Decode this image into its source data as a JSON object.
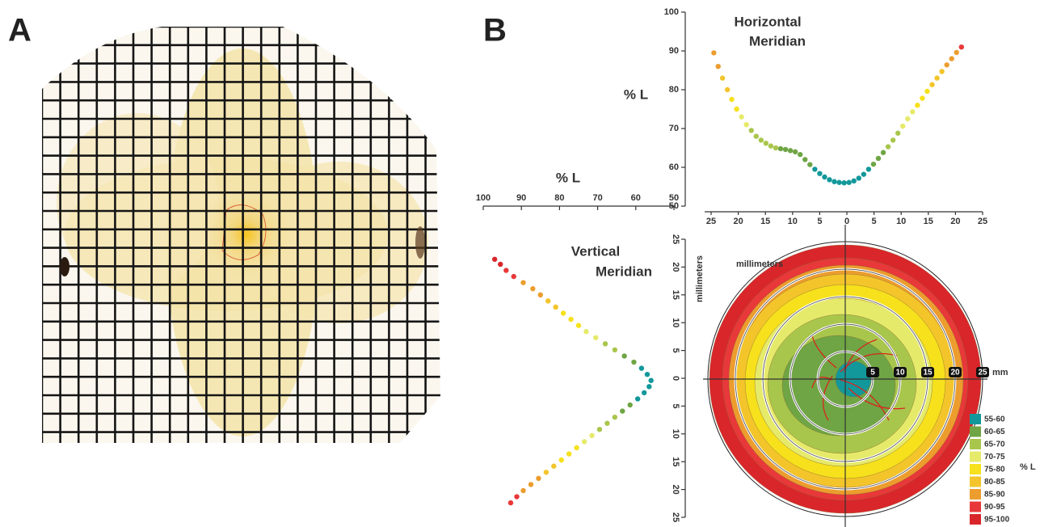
{
  "panel_labels": [
    "A",
    "B"
  ],
  "chart_data": [
    {
      "type": "scatter",
      "title": [
        "Horizontal",
        "Meridian"
      ],
      "y_label": "% L",
      "x": [
        -24.5,
        -23.7,
        -22.9,
        -22,
        -21.2,
        -20.3,
        -19.4,
        -18.5,
        -17.6,
        -16.7,
        -15.8,
        -14.9,
        -14,
        -13.1,
        -12.2,
        -11.3,
        -10.4,
        -9.5,
        -8.6,
        -7.7,
        -6.8,
        -5.9,
        -5,
        -4.1,
        -3.2,
        -2.3,
        -1.4,
        -0.5,
        0.4,
        1.3,
        2.2,
        3.1,
        4,
        4.9,
        5.8,
        6.7,
        7.6,
        8.5,
        9.4,
        10.3,
        11.2,
        12.1,
        13,
        13.9,
        14.8,
        15.7,
        16.6,
        17.5,
        18.4,
        19.3,
        20.2,
        21.1
      ],
      "values": [
        89.5,
        86,
        83,
        80,
        77.5,
        75,
        73,
        71,
        69.5,
        68,
        67,
        66.2,
        65.5,
        65,
        64.8,
        64.6,
        64.3,
        64,
        63.3,
        62,
        60.7,
        59.5,
        58.4,
        57.5,
        56.8,
        56.3,
        56.1,
        56,
        56.1,
        56.5,
        57.2,
        58.2,
        59.5,
        60.8,
        62.3,
        63.8,
        65.3,
        67,
        68.8,
        70.6,
        72.5,
        74.3,
        76,
        77.8,
        79.6,
        81.3,
        83,
        84.7,
        86.4,
        88,
        89.6,
        91
      ],
      "xlim": [
        -25,
        25
      ],
      "xticks": [
        {
          "value": -25,
          "label": "25"
        },
        {
          "value": -20,
          "label": "20"
        },
        {
          "value": -15,
          "label": "15"
        },
        {
          "value": -10,
          "label": "10"
        },
        {
          "value": -5,
          "label": "5"
        },
        0,
        5,
        10,
        15,
        20,
        25
      ],
      "ylim": [
        50,
        100
      ],
      "yticks": [
        50,
        60,
        70,
        80,
        90,
        100
      ]
    },
    {
      "type": "scatter-vertical",
      "title": [
        "Vertical",
        "Meridian"
      ],
      "x_label": "% L",
      "y_label": "millimeters",
      "x": [
        21.4,
        20.5,
        19.4,
        18.3,
        17.2,
        16.1,
        15,
        13.9,
        12.8,
        11.7,
        10.6,
        9.5,
        8.4,
        7.3,
        6.2,
        5.1,
        4,
        2.9,
        1.8,
        0.7,
        -0.4,
        -1.5,
        -2.6,
        -3.7,
        -4.8,
        -5.9,
        -7,
        -8.1,
        -9.2,
        -10.3,
        -11.4,
        -12.5,
        -13.6,
        -14.7,
        -15.8,
        -16.9,
        -18,
        -19.1,
        -20.2,
        -21.3,
        -22.4
      ],
      "values": [
        97,
        95.5,
        94,
        92,
        89.5,
        87,
        85,
        83,
        81,
        79,
        77,
        75,
        73,
        70.5,
        68,
        65.5,
        63,
        60.5,
        58.5,
        57,
        56,
        56.5,
        57.8,
        59.5,
        61.5,
        63.5,
        65.5,
        67.5,
        69.5,
        71.5,
        73.5,
        75.5,
        77.5,
        79.5,
        81.5,
        83.5,
        85.5,
        87.5,
        89.5,
        91.2,
        92.8
      ],
      "xlim": [
        100,
        50
      ],
      "xticks": [
        100,
        90,
        80,
        70,
        60,
        50
      ],
      "ylim": [
        -25,
        25
      ],
      "yticks": [
        {
          "value": -25,
          "label": "25"
        },
        {
          "value": -20,
          "label": "20"
        },
        {
          "value": -15,
          "label": "15"
        },
        {
          "value": -10,
          "label": "10"
        },
        {
          "value": -5,
          "label": "5"
        },
        0,
        5,
        10,
        15,
        20,
        25
      ]
    },
    {
      "type": "polar-contour",
      "x_label": "millimeters",
      "ring_ticks": [
        5,
        10,
        15,
        20,
        25
      ],
      "ring_unit": "mm",
      "legend_title": "% L",
      "legend": [
        {
          "label": "55-60",
          "color": "#12989b"
        },
        {
          "label": "60-65",
          "color": "#6fa544"
        },
        {
          "label": "65-70",
          "color": "#a9c64c"
        },
        {
          "label": "70-75",
          "color": "#e6ea6a"
        },
        {
          "label": "75-80",
          "color": "#f6e11c"
        },
        {
          "label": "80-85",
          "color": "#f3c52b"
        },
        {
          "label": "85-90",
          "color": "#ec9d2e"
        },
        {
          "label": "90-95",
          "color": "#e8383a"
        },
        {
          "label": "95-100",
          "color": "#d9262b"
        }
      ]
    }
  ]
}
